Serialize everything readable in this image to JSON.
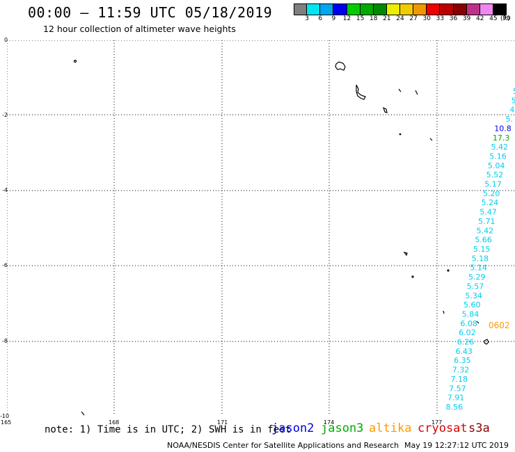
{
  "title": "00:00 – 11:59 UTC 05/18/2019",
  "subtitle": "12 hour collection of altimeter wave heights",
  "legend": {
    "unit": "(ft)",
    "swatches": [
      {
        "color": "#7f7f7f",
        "label": "3"
      },
      {
        "color": "#00e5ee",
        "label": "6"
      },
      {
        "color": "#00a6ee",
        "label": "9"
      },
      {
        "color": "#0000ee",
        "label": "12"
      },
      {
        "color": "#00cc00",
        "label": "15"
      },
      {
        "color": "#00aa00",
        "label": "18"
      },
      {
        "color": "#008800",
        "label": "21"
      },
      {
        "color": "#eeee00",
        "label": "24"
      },
      {
        "color": "#eecc00",
        "label": "27"
      },
      {
        "color": "#ee9900",
        "label": "30"
      },
      {
        "color": "#ee0000",
        "label": "33"
      },
      {
        "color": "#bb0000",
        "label": "36"
      },
      {
        "color": "#880000",
        "label": "39"
      },
      {
        "color": "#bb3388",
        "label": "42"
      },
      {
        "color": "#ee88ee",
        "label": "45"
      },
      {
        "color": "#000000",
        "label": "70"
      }
    ]
  },
  "axes": {
    "lat_labels": [
      "0",
      "-2",
      "-4",
      "-6",
      "-8",
      "-10"
    ],
    "lon_labels": [
      "165",
      "168",
      "171",
      "174",
      "177"
    ]
  },
  "colors": {
    "jason2": "#0000dd",
    "jason3": "#00aa00",
    "altika": "#ff9900",
    "cryosat": "#dd0000",
    "s3a": "#880000",
    "track_cyan": "#00ccee"
  },
  "track_labels": [
    {
      "text": "5",
      "color": "track_cyan"
    },
    {
      "text": "5",
      "color": "track_cyan"
    },
    {
      "text": "4",
      "color": "track_cyan"
    },
    {
      "text": "5.",
      "color": "track_cyan"
    },
    {
      "text": "10.8",
      "color": "jason2"
    },
    {
      "text": "17.3",
      "color": "jason3"
    },
    {
      "text": "5.42",
      "color": "track_cyan"
    },
    {
      "text": "5.16",
      "color": "track_cyan"
    },
    {
      "text": "5.04",
      "color": "track_cyan"
    },
    {
      "text": "5.52",
      "color": "track_cyan"
    },
    {
      "text": "5.17",
      "color": "track_cyan"
    },
    {
      "text": "5.20",
      "color": "track_cyan"
    },
    {
      "text": "5.24",
      "color": "track_cyan"
    },
    {
      "text": "5.47",
      "color": "track_cyan"
    },
    {
      "text": "5.71",
      "color": "track_cyan"
    },
    {
      "text": "5.42",
      "color": "track_cyan"
    },
    {
      "text": "5.66",
      "color": "track_cyan"
    },
    {
      "text": "5.15",
      "color": "track_cyan"
    },
    {
      "text": "5.18",
      "color": "track_cyan"
    },
    {
      "text": "5.14",
      "color": "track_cyan"
    },
    {
      "text": "5.29",
      "color": "track_cyan"
    },
    {
      "text": "5.57",
      "color": "track_cyan"
    },
    {
      "text": "5.34",
      "color": "track_cyan"
    },
    {
      "text": "5.60",
      "color": "track_cyan"
    },
    {
      "text": "5.84",
      "color": "track_cyan"
    },
    {
      "text": "6.08",
      "color": "track_cyan"
    },
    {
      "text": "0602",
      "color": "altika"
    },
    {
      "text": "6.02",
      "color": "track_cyan"
    },
    {
      "text": "6.26",
      "color": "track_cyan"
    },
    {
      "text": "6.43",
      "color": "track_cyan"
    },
    {
      "text": "6.35",
      "color": "track_cyan"
    },
    {
      "text": "7.32",
      "color": "track_cyan"
    },
    {
      "text": "7.18",
      "color": "track_cyan"
    },
    {
      "text": "7.57",
      "color": "track_cyan"
    },
    {
      "text": "7.91",
      "color": "track_cyan"
    },
    {
      "text": "8.56",
      "color": "track_cyan"
    }
  ],
  "note": "note: 1) Time is in UTC; 2) SWH is in feet",
  "satellites": {
    "jason2": "jason2",
    "jason3": "jason3",
    "altika": "altika",
    "cryosat": "cryosat",
    "s3a": "s3a"
  },
  "footer": {
    "source": "NOAA/NESDIS Center for Satellite Applications and Research",
    "generated": "May 19 12:27:12 UTC 2019"
  }
}
